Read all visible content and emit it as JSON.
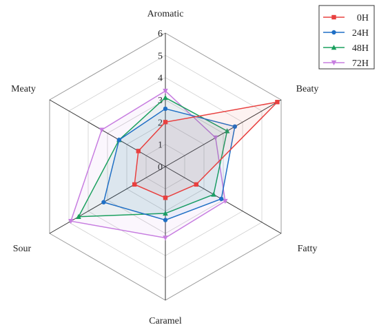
{
  "chart_data": {
    "type": "radar",
    "axes": [
      "Aromatic",
      "Beaty",
      "Fatty",
      "Caramel",
      "Sour",
      "Meaty"
    ],
    "ticks": [
      "0",
      "1",
      "2",
      "3",
      "4",
      "5",
      "6"
    ],
    "rmax": 6,
    "grid": true,
    "legend_position": "top-right",
    "series": [
      {
        "name": "0H",
        "color": "#e8403f",
        "marker": "square",
        "values": [
          2.0,
          5.8,
          1.6,
          1.4,
          1.6,
          1.4
        ]
      },
      {
        "name": "24H",
        "color": "#1f6fc5",
        "marker": "circle",
        "values": [
          2.6,
          3.6,
          2.9,
          2.4,
          3.2,
          2.4
        ]
      },
      {
        "name": "48H",
        "color": "#1aa05e",
        "marker": "triangle",
        "values": [
          3.1,
          3.2,
          2.5,
          2.1,
          4.5,
          2.4
        ]
      },
      {
        "name": "72H",
        "color": "#c77de0",
        "marker": "tri-down",
        "values": [
          3.4,
          2.6,
          3.1,
          3.2,
          4.9,
          3.3
        ]
      }
    ]
  }
}
